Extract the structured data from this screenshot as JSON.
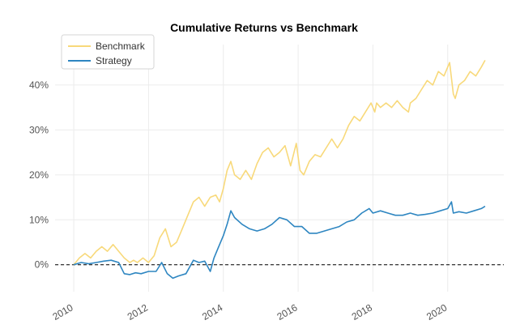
{
  "chart_data": {
    "type": "line",
    "title": "Cumulative Returns vs Benchmark",
    "xlabel": "",
    "ylabel": "",
    "xlim": [
      2009.5,
      2021.5
    ],
    "ylim": [
      -6,
      49
    ],
    "x_ticks": [
      2010,
      2012,
      2014,
      2016,
      2018,
      2020
    ],
    "x_tick_labels": [
      "2010",
      "2012",
      "2014",
      "2016",
      "2018",
      "2020"
    ],
    "y_ticks": [
      0,
      10,
      20,
      30,
      40
    ],
    "y_tick_labels": [
      "0%",
      "10%",
      "20%",
      "30%",
      "40%"
    ],
    "grid": true,
    "baseline": 0,
    "legend_position": "top-left",
    "series": [
      {
        "name": "Benchmark",
        "color": "#F8D97A",
        "x": [
          2010.0,
          2010.15,
          2010.3,
          2010.45,
          2010.6,
          2010.75,
          2010.9,
          2011.05,
          2011.2,
          2011.35,
          2011.5,
          2011.6,
          2011.7,
          2011.85,
          2012.0,
          2012.15,
          2012.3,
          2012.45,
          2012.6,
          2012.75,
          2012.9,
          2013.05,
          2013.2,
          2013.35,
          2013.5,
          2013.65,
          2013.8,
          2013.9,
          2014.0,
          2014.1,
          2014.2,
          2014.3,
          2014.45,
          2014.6,
          2014.75,
          2014.9,
          2015.05,
          2015.2,
          2015.35,
          2015.5,
          2015.65,
          2015.8,
          2015.95,
          2016.05,
          2016.15,
          2016.3,
          2016.45,
          2016.6,
          2016.75,
          2016.9,
          2017.05,
          2017.2,
          2017.35,
          2017.5,
          2017.65,
          2017.8,
          2017.95,
          2018.05,
          2018.1,
          2018.2,
          2018.35,
          2018.5,
          2018.65,
          2018.8,
          2018.95,
          2019.0,
          2019.15,
          2019.3,
          2019.45,
          2019.6,
          2019.75,
          2019.9,
          2020.05,
          2020.15,
          2020.2,
          2020.3,
          2020.45,
          2020.6,
          2020.75,
          2020.9,
          2021.0
        ],
        "values": [
          0,
          1.5,
          2.5,
          1.5,
          3,
          4,
          3,
          4.5,
          3,
          1.5,
          0.5,
          1,
          0.5,
          1.5,
          0.5,
          2,
          6,
          8,
          4,
          5,
          8,
          11,
          14,
          15,
          13,
          15,
          15.5,
          14,
          17,
          21,
          23,
          20,
          19,
          21,
          19,
          22.5,
          25,
          26,
          24,
          25,
          26.5,
          22,
          27,
          21,
          20,
          23,
          24.5,
          24,
          26,
          28,
          26,
          28,
          31,
          33,
          32,
          34,
          36,
          34,
          36,
          35,
          36,
          35,
          36.5,
          35,
          34,
          36,
          37,
          39,
          41,
          40,
          43,
          42,
          45,
          38,
          37,
          40,
          41,
          43,
          42,
          44,
          45.5
        ]
      },
      {
        "name": "Strategy",
        "color": "#2E86C1",
        "x": [
          2010.0,
          2010.2,
          2010.4,
          2010.6,
          2010.8,
          2011.0,
          2011.2,
          2011.35,
          2011.5,
          2011.65,
          2011.8,
          2012.0,
          2012.2,
          2012.35,
          2012.5,
          2012.65,
          2012.8,
          2013.0,
          2013.2,
          2013.35,
          2013.5,
          2013.65,
          2013.75,
          2013.85,
          2014.0,
          2014.1,
          2014.2,
          2014.3,
          2014.5,
          2014.7,
          2014.9,
          2015.1,
          2015.3,
          2015.5,
          2015.7,
          2015.9,
          2016.1,
          2016.3,
          2016.5,
          2016.7,
          2016.9,
          2017.1,
          2017.3,
          2017.5,
          2017.7,
          2017.9,
          2018.0,
          2018.2,
          2018.4,
          2018.6,
          2018.8,
          2019.0,
          2019.2,
          2019.4,
          2019.6,
          2019.8,
          2020.0,
          2020.1,
          2020.15,
          2020.3,
          2020.5,
          2020.7,
          2020.9,
          2021.0
        ],
        "values": [
          0,
          0.5,
          0.2,
          0.5,
          0.8,
          1,
          0.5,
          -2,
          -2.2,
          -1.8,
          -2,
          -1.5,
          -1.5,
          0.5,
          -2,
          -3,
          -2.5,
          -2,
          1,
          0.5,
          0.8,
          -1.5,
          1.5,
          3.5,
          6.5,
          9,
          12,
          10.5,
          9,
          8,
          7.5,
          8,
          9,
          10.5,
          10,
          8.5,
          8.5,
          7,
          7,
          7.5,
          8,
          8.5,
          9.5,
          10,
          11.5,
          12.5,
          11.5,
          12,
          11.5,
          11,
          11,
          11.5,
          11,
          11.2,
          11.5,
          12,
          12.5,
          14,
          11.5,
          11.8,
          11.5,
          12,
          12.5,
          13
        ]
      }
    ]
  }
}
